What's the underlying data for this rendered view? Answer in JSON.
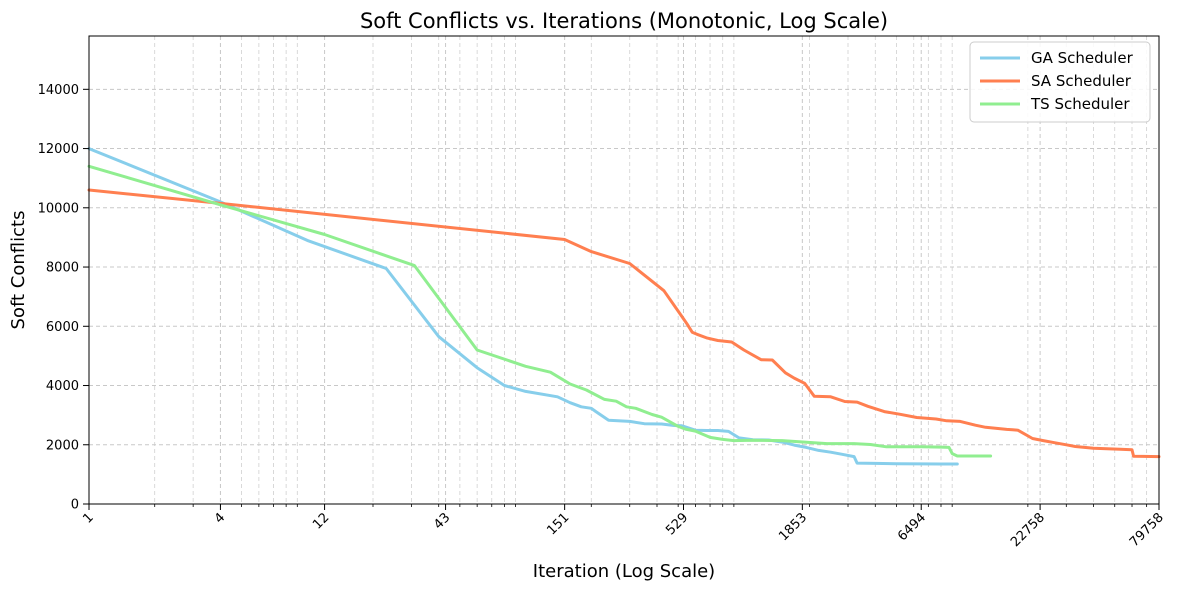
{
  "chart_data": {
    "type": "line",
    "title": "Soft Conflicts vs. Iterations (Monotonic, Log Scale)",
    "xlabel": "Iteration (Log Scale)",
    "ylabel": "Soft Conflicts",
    "x_scale": "log",
    "xlim": [
      1,
      79758
    ],
    "ylim": [
      0,
      15800
    ],
    "x_ticks": [
      1,
      4,
      12,
      43,
      151,
      529,
      1853,
      6494,
      22758,
      79758
    ],
    "x_tick_labels": [
      "1",
      "4",
      "12",
      "43",
      "151",
      "529",
      "1853",
      "6494",
      "22758",
      "79758"
    ],
    "y_ticks": [
      0,
      2000,
      4000,
      6000,
      8000,
      10000,
      12000,
      14000
    ],
    "y_tick_labels": [
      "0",
      "2000",
      "4000",
      "6000",
      "8000",
      "10000",
      "12000",
      "14000"
    ],
    "grid": true,
    "legend_position": "top-right",
    "series": [
      {
        "name": "GA Scheduler",
        "color": "#87CEEB",
        "x": [
          1,
          4,
          10,
          23,
          40,
          60,
          80,
          100,
          140,
          160,
          180,
          200,
          210,
          240,
          300,
          350,
          420,
          480,
          520,
          600,
          680,
          760,
          850,
          950,
          1100,
          1300,
          1500,
          1700,
          1900,
          2200,
          2500,
          2800,
          3200,
          3300,
          4000,
          5000,
          6500,
          8000,
          9500
        ],
        "y": [
          12000,
          10200,
          8900,
          7950,
          5650,
          4600,
          4000,
          3800,
          3620,
          3420,
          3280,
          3230,
          3120,
          2830,
          2790,
          2710,
          2700,
          2650,
          2640,
          2490,
          2480,
          2480,
          2450,
          2230,
          2170,
          2160,
          2090,
          1990,
          1920,
          1810,
          1750,
          1680,
          1600,
          1380,
          1370,
          1360,
          1355,
          1350,
          1350
        ]
      },
      {
        "name": "SA Scheduler",
        "color": "#FF7F50",
        "x": [
          1,
          4,
          151,
          200,
          300,
          430,
          520,
          550,
          580,
          610,
          680,
          760,
          880,
          1000,
          1200,
          1350,
          1550,
          1700,
          1900,
          2100,
          2500,
          2900,
          3300,
          3700,
          4400,
          5200,
          6200,
          7600,
          8500,
          9800,
          11500,
          12800,
          16000,
          17000,
          18000,
          21000,
          23500,
          26500,
          30000,
          33000,
          40000,
          53000,
          60000,
          61000,
          79758
        ],
        "y": [
          10600,
          10150,
          8930,
          8520,
          8120,
          7200,
          6330,
          6070,
          5800,
          5730,
          5600,
          5520,
          5470,
          5200,
          4870,
          4860,
          4430,
          4250,
          4070,
          3640,
          3620,
          3460,
          3440,
          3300,
          3120,
          3030,
          2920,
          2870,
          2810,
          2790,
          2660,
          2590,
          2520,
          2510,
          2490,
          2210,
          2140,
          2070,
          2000,
          1940,
          1880,
          1850,
          1830,
          1610,
          1600
        ]
      },
      {
        "name": "TS Scheduler",
        "color": "#90EE90",
        "x": [
          1,
          4,
          12,
          31,
          60,
          100,
          130,
          160,
          190,
          230,
          260,
          290,
          320,
          380,
          420,
          500,
          540,
          600,
          700,
          800,
          900,
          1100,
          1500,
          2400,
          3200,
          3800,
          4500,
          6500,
          8000,
          8700,
          9000,
          9500,
          13500
        ],
        "y": [
          11400,
          10100,
          9100,
          8050,
          5200,
          4650,
          4450,
          4050,
          3850,
          3530,
          3470,
          3280,
          3230,
          3020,
          2930,
          2620,
          2530,
          2460,
          2250,
          2180,
          2140,
          2150,
          2140,
          2040,
          2040,
          2010,
          1930,
          1930,
          1920,
          1910,
          1700,
          1620,
          1620
        ]
      }
    ]
  }
}
